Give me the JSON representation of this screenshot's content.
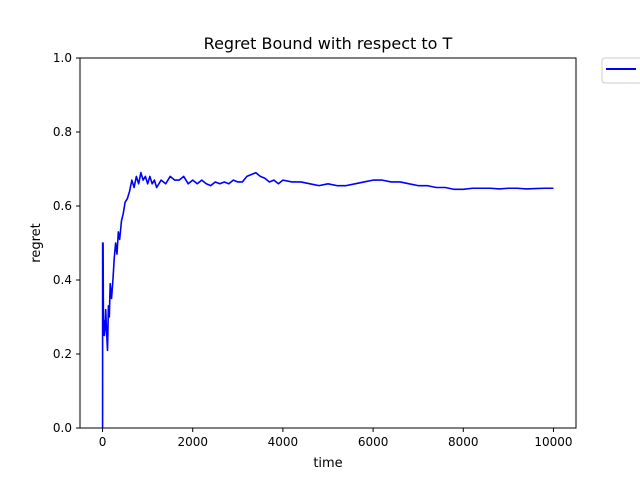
{
  "chart_data": {
    "type": "line",
    "title": "Regret Bound with respect to T",
    "xlabel": "time",
    "ylabel": "regret",
    "xlim": [
      -500,
      10500
    ],
    "ylim": [
      0,
      1
    ],
    "xticks": [
      0,
      2000,
      4000,
      6000,
      8000,
      10000
    ],
    "xtick_labels": [
      "0",
      "2000",
      "4000",
      "6000",
      "8000",
      "10000"
    ],
    "yticks": [
      0,
      0.2,
      0.4,
      0.6,
      0.8,
      1.0
    ],
    "ytick_labels": [
      "0.0",
      "0.2",
      "0.4",
      "0.6",
      "0.8",
      "1.0"
    ],
    "grid": false,
    "legend": {
      "position": "outside-top-right",
      "entries": [
        ""
      ]
    },
    "series": [
      {
        "color": "#0000ff",
        "x": [
          1,
          2,
          3,
          5,
          8,
          12,
          20,
          30,
          40,
          55,
          70,
          90,
          110,
          130,
          150,
          170,
          200,
          230,
          260,
          290,
          320,
          350,
          380,
          420,
          460,
          500,
          550,
          600,
          650,
          700,
          750,
          800,
          850,
          900,
          950,
          1000,
          1050,
          1100,
          1150,
          1200,
          1300,
          1400,
          1500,
          1600,
          1700,
          1800,
          1900,
          2000,
          2100,
          2200,
          2300,
          2400,
          2500,
          2600,
          2700,
          2800,
          2900,
          3000,
          3100,
          3200,
          3300,
          3400,
          3500,
          3600,
          3700,
          3800,
          3900,
          4000,
          4200,
          4400,
          4600,
          4800,
          5000,
          5200,
          5400,
          5600,
          5800,
          6000,
          6200,
          6400,
          6600,
          6800,
          7000,
          7200,
          7400,
          7600,
          7800,
          8000,
          8200,
          8400,
          8600,
          8800,
          9000,
          9200,
          9400,
          9600,
          9800,
          10000
        ],
        "y": [
          0.0,
          0.5,
          0.35,
          0.27,
          0.25,
          0.5,
          0.26,
          0.29,
          0.25,
          0.27,
          0.32,
          0.26,
          0.21,
          0.33,
          0.3,
          0.39,
          0.35,
          0.4,
          0.46,
          0.5,
          0.47,
          0.53,
          0.51,
          0.56,
          0.58,
          0.61,
          0.62,
          0.64,
          0.67,
          0.65,
          0.68,
          0.66,
          0.69,
          0.67,
          0.68,
          0.66,
          0.68,
          0.66,
          0.67,
          0.65,
          0.67,
          0.66,
          0.68,
          0.67,
          0.67,
          0.68,
          0.66,
          0.67,
          0.66,
          0.67,
          0.66,
          0.655,
          0.665,
          0.66,
          0.665,
          0.66,
          0.67,
          0.665,
          0.665,
          0.68,
          0.685,
          0.69,
          0.68,
          0.675,
          0.665,
          0.67,
          0.66,
          0.67,
          0.665,
          0.665,
          0.66,
          0.655,
          0.66,
          0.655,
          0.655,
          0.66,
          0.665,
          0.67,
          0.67,
          0.665,
          0.665,
          0.66,
          0.655,
          0.655,
          0.65,
          0.65,
          0.645,
          0.645,
          0.648,
          0.648,
          0.648,
          0.646,
          0.648,
          0.648,
          0.646,
          0.647,
          0.648,
          0.648
        ]
      }
    ]
  }
}
